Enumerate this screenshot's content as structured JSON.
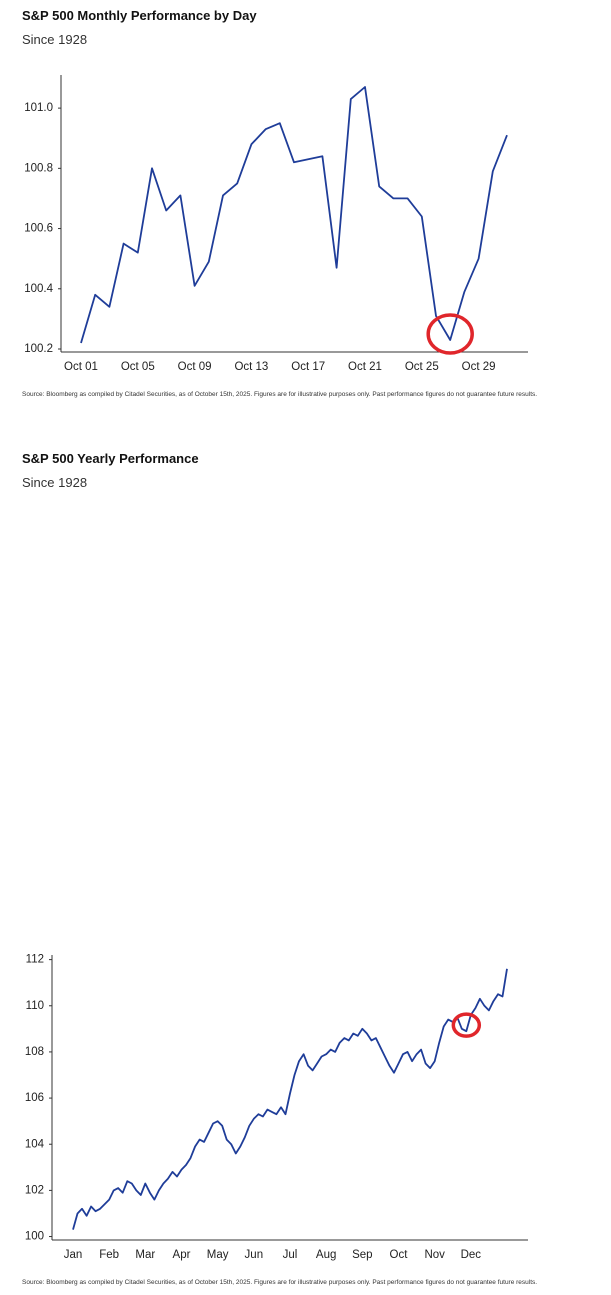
{
  "chart_data": [
    {
      "type": "line",
      "title": "S&P 500 Monthly Performance by Day",
      "subtitle": "Since 1928",
      "categories": [
        "Oct 01",
        null,
        null,
        null,
        "Oct 05",
        null,
        null,
        null,
        "Oct 09",
        null,
        null,
        null,
        "Oct 13",
        null,
        null,
        null,
        "Oct 17",
        null,
        null,
        null,
        "Oct 21",
        null,
        null,
        null,
        "Oct 25",
        null,
        null,
        null,
        "Oct 29",
        null,
        null
      ],
      "values": [
        100.22,
        100.38,
        100.34,
        100.55,
        100.52,
        100.8,
        100.66,
        100.71,
        100.41,
        100.49,
        100.71,
        100.75,
        100.88,
        100.93,
        100.95,
        100.82,
        100.83,
        100.84,
        100.47,
        101.03,
        101.07,
        100.74,
        100.7,
        100.7,
        100.64,
        100.31,
        100.23,
        100.39,
        100.5,
        100.79,
        100.91
      ],
      "color": "#1f3d99",
      "ylim": [
        100.19,
        101.11
      ],
      "yticks": [
        100.2,
        100.4,
        100.6,
        100.8,
        {
          "value": 101.0,
          "label": "101.0"
        }
      ],
      "source": "Source: Bloomberg as compiled by Citadel Securities, as of October 15th, 2025. Figures are for illustrative purposes only. Past performance figures do not guarantee future results."
    },
    {
      "type": "line",
      "title": "S&P 500 Yearly Performance",
      "subtitle": "Since 1928",
      "categories": [
        "Jan",
        null,
        null,
        null,
        null,
        null,
        null,
        null,
        "Feb",
        null,
        null,
        null,
        null,
        null,
        null,
        null,
        "Mar",
        null,
        null,
        null,
        null,
        null,
        null,
        null,
        "Apr",
        null,
        null,
        null,
        null,
        null,
        null,
        null,
        "May",
        null,
        null,
        null,
        null,
        null,
        null,
        null,
        "Jun",
        null,
        null,
        null,
        null,
        null,
        null,
        null,
        "Jul",
        null,
        null,
        null,
        null,
        null,
        null,
        null,
        "Aug",
        null,
        null,
        null,
        null,
        null,
        null,
        null,
        "Sep",
        null,
        null,
        null,
        null,
        null,
        null,
        null,
        "Oct",
        null,
        null,
        null,
        null,
        null,
        null,
        null,
        "Nov",
        null,
        null,
        null,
        null,
        null,
        null,
        null,
        "Dec",
        null,
        null,
        null,
        null,
        null,
        null,
        null,
        null
      ],
      "values": [
        100.3,
        101.0,
        101.2,
        100.9,
        101.3,
        101.1,
        101.2,
        101.4,
        101.6,
        102.0,
        102.1,
        101.9,
        102.4,
        102.3,
        102.0,
        101.8,
        102.3,
        101.9,
        101.6,
        102.0,
        102.3,
        102.5,
        102.8,
        102.6,
        102.9,
        103.1,
        103.4,
        103.9,
        104.2,
        104.1,
        104.5,
        104.9,
        105.0,
        104.8,
        104.2,
        104.0,
        103.6,
        103.9,
        104.3,
        104.8,
        105.1,
        105.3,
        105.2,
        105.5,
        105.4,
        105.3,
        105.6,
        105.3,
        106.2,
        107.0,
        107.6,
        107.9,
        107.4,
        107.2,
        107.5,
        107.8,
        107.9,
        108.1,
        108.0,
        108.4,
        108.6,
        108.5,
        108.8,
        108.7,
        109.0,
        108.8,
        108.5,
        108.6,
        108.2,
        107.8,
        107.4,
        107.1,
        107.5,
        107.9,
        108.0,
        107.6,
        107.9,
        108.1,
        107.5,
        107.3,
        107.6,
        108.4,
        109.1,
        109.4,
        109.3,
        109.5,
        109.0,
        108.9,
        109.6,
        109.9,
        110.3,
        110.0,
        109.8,
        110.2,
        110.5,
        110.4,
        111.6
      ],
      "color": "#1f3d99",
      "ylim": [
        99.85,
        112.2
      ],
      "yticks": [
        100,
        102,
        104,
        106,
        108,
        110,
        112
      ],
      "source": "Source: Bloomberg as compiled by Citadel Securities, as of October 15th, 2025. Figures are for illustrative purposes only. Past performance figures do not guarantee future results."
    }
  ]
}
